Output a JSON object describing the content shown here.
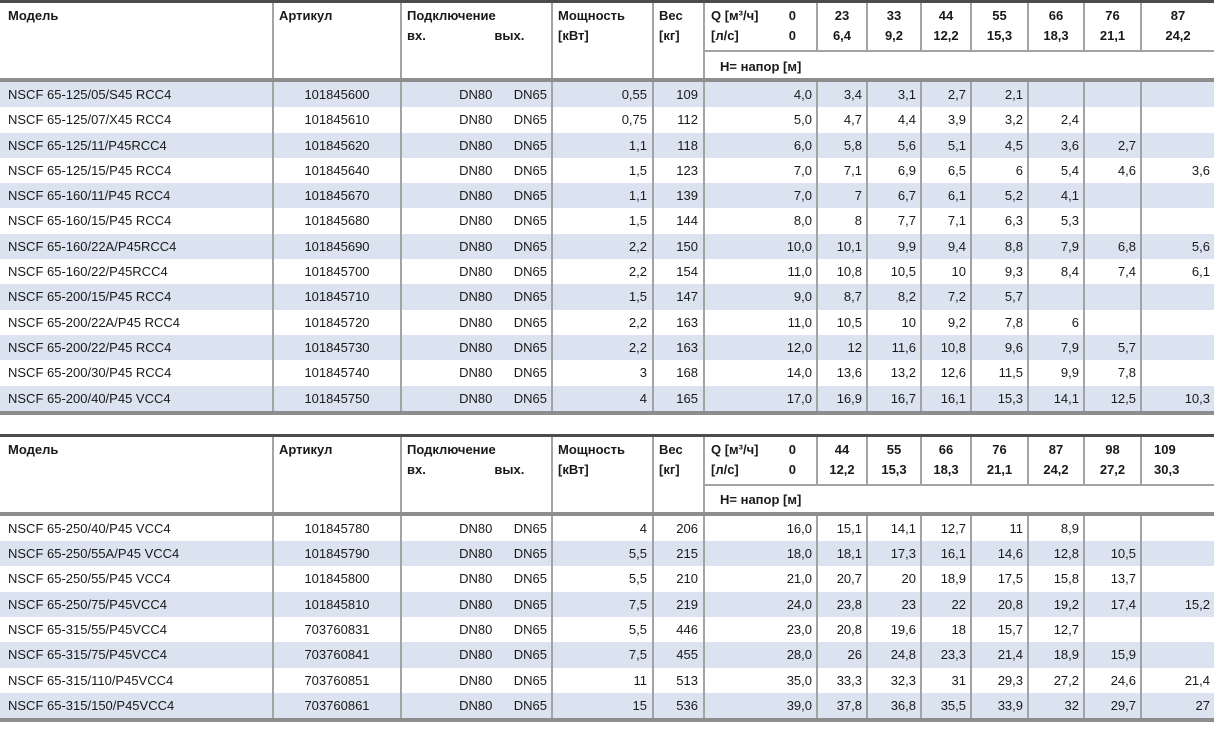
{
  "colors": {
    "row_shade": "#dae3ef",
    "grid_border": "#a3a3a3",
    "top_border": "#4c4c4c",
    "thick_border": "#8d8d8d",
    "text": "#1a1a1a"
  },
  "labels": {
    "model": "Модель",
    "article": "Артикул",
    "connection": "Подключение",
    "inlet": "вх.",
    "outlet": "вых.",
    "power_line1": "Мощность",
    "power_line2": "[кВт]",
    "weight_line1": "Вес",
    "weight_line2": "[кг]",
    "q_line1": "Q [м³/ч]",
    "q_line2": "[л/с]",
    "q_zero": "0",
    "head_row": "Н= напор [м]"
  },
  "table1": {
    "first_row_shaded": true,
    "last_q_left": false,
    "q_m3h": [
      "23",
      "33",
      "44",
      "55",
      "66",
      "76",
      "87"
    ],
    "q_ls": [
      "6,4",
      "9,2",
      "12,2",
      "15,3",
      "18,3",
      "21,1",
      "24,2"
    ],
    "rows": [
      {
        "model": "NSCF 65-125/05/S45 RCC4",
        "article": "101845600",
        "dn_in": "DN80",
        "dn_out": "DN65",
        "power": "0,55",
        "weight": "109",
        "heads": [
          "4,0",
          "3,4",
          "3,1",
          "2,7",
          "2,1",
          "",
          "",
          ""
        ]
      },
      {
        "model": "NSCF 65-125/07/X45 RCC4",
        "article": "101845610",
        "dn_in": "DN80",
        "dn_out": "DN65",
        "power": "0,75",
        "weight": "112",
        "heads": [
          "5,0",
          "4,7",
          "4,4",
          "3,9",
          "3,2",
          "2,4",
          "",
          ""
        ]
      },
      {
        "model": "NSCF 65-125/11/P45RCC4",
        "article": "101845620",
        "dn_in": "DN80",
        "dn_out": "DN65",
        "power": "1,1",
        "weight": "118",
        "heads": [
          "6,0",
          "5,8",
          "5,6",
          "5,1",
          "4,5",
          "3,6",
          "2,7",
          ""
        ]
      },
      {
        "model": "NSCF 65-125/15/P45 RCC4",
        "article": "101845640",
        "dn_in": "DN80",
        "dn_out": "DN65",
        "power": "1,5",
        "weight": "123",
        "heads": [
          "7,0",
          "7,1",
          "6,9",
          "6,5",
          "6",
          "5,4",
          "4,6",
          "3,6"
        ]
      },
      {
        "model": "NSCF 65-160/11/P45 RCC4",
        "article": "101845670",
        "dn_in": "DN80",
        "dn_out": "DN65",
        "power": "1,1",
        "weight": "139",
        "heads": [
          "7,0",
          "7",
          "6,7",
          "6,1",
          "5,2",
          "4,1",
          "",
          ""
        ]
      },
      {
        "model": "NSCF 65-160/15/P45 RCC4",
        "article": "101845680",
        "dn_in": "DN80",
        "dn_out": "DN65",
        "power": "1,5",
        "weight": "144",
        "heads": [
          "8,0",
          "8",
          "7,7",
          "7,1",
          "6,3",
          "5,3",
          "",
          ""
        ]
      },
      {
        "model": "NSCF 65-160/22A/P45RCC4",
        "article": "101845690",
        "dn_in": "DN80",
        "dn_out": "DN65",
        "power": "2,2",
        "weight": "150",
        "heads": [
          "10,0",
          "10,1",
          "9,9",
          "9,4",
          "8,8",
          "7,9",
          "6,8",
          "5,6"
        ]
      },
      {
        "model": "NSCF 65-160/22/P45RCC4",
        "article": "101845700",
        "dn_in": "DN80",
        "dn_out": "DN65",
        "power": "2,2",
        "weight": "154",
        "heads": [
          "11,0",
          "10,8",
          "10,5",
          "10",
          "9,3",
          "8,4",
          "7,4",
          "6,1"
        ]
      },
      {
        "model": "NSCF 65-200/15/P45 RCC4",
        "article": "101845710",
        "dn_in": "DN80",
        "dn_out": "DN65",
        "power": "1,5",
        "weight": "147",
        "heads": [
          "9,0",
          "8,7",
          "8,2",
          "7,2",
          "5,7",
          "",
          "",
          ""
        ]
      },
      {
        "model": "NSCF 65-200/22A/P45 RCC4",
        "article": "101845720",
        "dn_in": "DN80",
        "dn_out": "DN65",
        "power": "2,2",
        "weight": "163",
        "heads": [
          "11,0",
          "10,5",
          "10",
          "9,2",
          "7,8",
          "6",
          "",
          ""
        ]
      },
      {
        "model": "NSCF 65-200/22/P45 RCC4",
        "article": "101845730",
        "dn_in": "DN80",
        "dn_out": "DN65",
        "power": "2,2",
        "weight": "163",
        "heads": [
          "12,0",
          "12",
          "11,6",
          "10,8",
          "9,6",
          "7,9",
          "5,7",
          ""
        ]
      },
      {
        "model": "NSCF 65-200/30/P45 RCC4",
        "article": "101845740",
        "dn_in": "DN80",
        "dn_out": "DN65",
        "power": "3",
        "weight": "168",
        "heads": [
          "14,0",
          "13,6",
          "13,2",
          "12,6",
          "11,5",
          "9,9",
          "7,8",
          ""
        ]
      },
      {
        "model": "NSCF 65-200/40/P45 VCC4",
        "article": "101845750",
        "dn_in": "DN80",
        "dn_out": "DN65",
        "power": "4",
        "weight": "165",
        "heads": [
          "17,0",
          "16,9",
          "16,7",
          "16,1",
          "15,3",
          "14,1",
          "12,5",
          "10,3"
        ]
      }
    ]
  },
  "table2": {
    "first_row_shaded": false,
    "last_q_left": true,
    "q_m3h": [
      "44",
      "55",
      "66",
      "76",
      "87",
      "98",
      "109"
    ],
    "q_ls": [
      "12,2",
      "15,3",
      "18,3",
      "21,1",
      "24,2",
      "27,2",
      "30,3"
    ],
    "rows": [
      {
        "model": "NSCF 65-250/40/P45 VCC4",
        "article": "101845780",
        "dn_in": "DN80",
        "dn_out": "DN65",
        "power": "4",
        "weight": "206",
        "heads": [
          "16,0",
          "15,1",
          "14,1",
          "12,7",
          "11",
          "8,9",
          "",
          ""
        ]
      },
      {
        "model": "NSCF 65-250/55A/P45 VCC4",
        "article": "101845790",
        "dn_in": "DN80",
        "dn_out": "DN65",
        "power": "5,5",
        "weight": "215",
        "heads": [
          "18,0",
          "18,1",
          "17,3",
          "16,1",
          "14,6",
          "12,8",
          "10,5",
          ""
        ]
      },
      {
        "model": "NSCF 65-250/55/P45 VCC4",
        "article": "101845800",
        "dn_in": "DN80",
        "dn_out": "DN65",
        "power": "5,5",
        "weight": "210",
        "heads": [
          "21,0",
          "20,7",
          "20",
          "18,9",
          "17,5",
          "15,8",
          "13,7",
          ""
        ]
      },
      {
        "model": "NSCF 65-250/75/P45VCC4",
        "article": "101845810",
        "dn_in": "DN80",
        "dn_out": "DN65",
        "power": "7,5",
        "weight": "219",
        "heads": [
          "24,0",
          "23,8",
          "23",
          "22",
          "20,8",
          "19,2",
          "17,4",
          "15,2"
        ]
      },
      {
        "model": "NSCF 65-315/55/P45VCC4",
        "article": "703760831",
        "dn_in": "DN80",
        "dn_out": "DN65",
        "power": "5,5",
        "weight": "446",
        "heads": [
          "23,0",
          "20,8",
          "19,6",
          "18",
          "15,7",
          "12,7",
          "",
          ""
        ]
      },
      {
        "model": "NSCF 65-315/75/P45VCC4",
        "article": "703760841",
        "dn_in": "DN80",
        "dn_out": "DN65",
        "power": "7,5",
        "weight": "455",
        "heads": [
          "28,0",
          "26",
          "24,8",
          "23,3",
          "21,4",
          "18,9",
          "15,9",
          ""
        ]
      },
      {
        "model": "NSCF 65-315/110/P45VCC4",
        "article": "703760851",
        "dn_in": "DN80",
        "dn_out": "DN65",
        "power": "11",
        "weight": "513",
        "heads": [
          "35,0",
          "33,3",
          "32,3",
          "31",
          "29,3",
          "27,2",
          "24,6",
          "21,4"
        ]
      },
      {
        "model": "NSCF 65-315/150/P45VCC4",
        "article": "703760861",
        "dn_in": "DN80",
        "dn_out": "DN65",
        "power": "15",
        "weight": "536",
        "heads": [
          "39,0",
          "37,8",
          "36,8",
          "35,5",
          "33,9",
          "32",
          "29,7",
          "27"
        ]
      }
    ]
  }
}
